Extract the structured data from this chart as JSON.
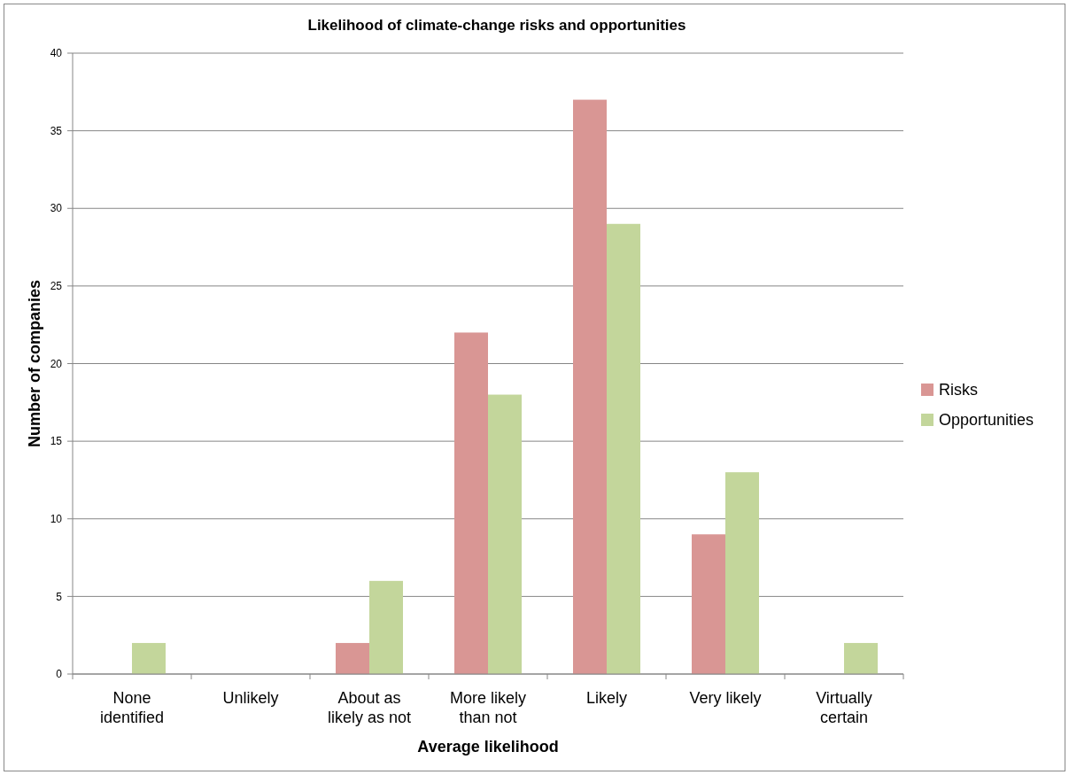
{
  "chart_data": {
    "type": "bar",
    "title": "Likelihood of climate-change risks and opportunities",
    "xlabel": "Average likelihood",
    "ylabel": "Number of companies",
    "categories": [
      "None identified",
      "Unlikely",
      "About as likely as not",
      "More likely than not",
      "Likely",
      "Very likely",
      "Virtually certain"
    ],
    "series": [
      {
        "name": "Risks",
        "color": "#d99694",
        "values": [
          0,
          0,
          2,
          22,
          37,
          9,
          0
        ]
      },
      {
        "name": "Opportunities",
        "color": "#c3d69b",
        "values": [
          2,
          0,
          6,
          18,
          29,
          13,
          2
        ]
      }
    ],
    "ylim": [
      0,
      40
    ],
    "yticks": [
      0,
      5,
      10,
      15,
      20,
      25,
      30,
      35,
      40
    ],
    "grid": "y",
    "legend": "right"
  }
}
